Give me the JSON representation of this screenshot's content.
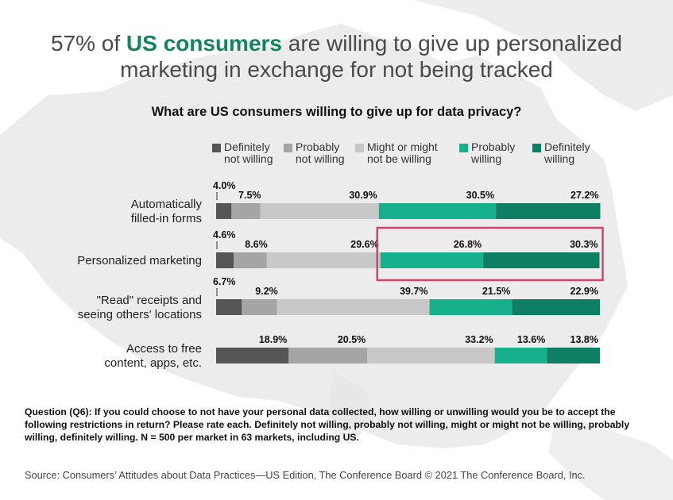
{
  "title": {
    "prefix": "57% of ",
    "highlight": "US consumers",
    "rest_line1": " are willing to give up personalized",
    "line2": "marketing in exchange for not being tracked"
  },
  "chart_data": {
    "type": "bar",
    "orientation": "horizontal",
    "stacked": true,
    "title": "What are US consumers willing to give up for data privacy?",
    "categories": [
      "Automatically filled-in forms",
      "Personalized marketing",
      "\"Read\" receipts and seeing others' locations",
      "Access to free content, apps, etc."
    ],
    "series": [
      {
        "name": "Definitely not willing",
        "color": "#555555",
        "values": [
          4.0,
          4.6,
          6.7,
          18.9
        ]
      },
      {
        "name": "Probably not willing",
        "color": "#a5a5a5",
        "values": [
          7.5,
          8.6,
          9.2,
          20.5
        ]
      },
      {
        "name": "Might or might not be willing",
        "color": "#c8c8c8",
        "values": [
          30.9,
          29.6,
          39.7,
          33.2
        ]
      },
      {
        "name": "Probably willing",
        "color": "#16b08c",
        "values": [
          30.5,
          26.8,
          21.5,
          13.6
        ]
      },
      {
        "name": "Definitely willing",
        "color": "#0e7f62",
        "values": [
          27.2,
          30.3,
          22.9,
          13.8
        ]
      }
    ],
    "value_labels": [
      [
        "4.0%",
        "7.5%",
        "30.9%",
        "30.5%",
        "27.2%"
      ],
      [
        "4.6%",
        "8.6%",
        "29.6%",
        "26.8%",
        "30.3%"
      ],
      [
        "6.7%",
        "9.2%",
        "39.7%",
        "21.5%",
        "22.9%"
      ],
      [
        "18.9%",
        "20.5%",
        "33.2%",
        "13.6%",
        "13.8%"
      ]
    ],
    "legend": {
      "position": "top",
      "labels": [
        "Definitely\nnot willing",
        "Probably\nnot willing",
        "Might or might\nnot be willing",
        "Probably\nwilling",
        "Definitely\nwilling"
      ]
    },
    "category_labels": [
      [
        "Automatically",
        "filled-in forms"
      ],
      [
        "Personalized marketing"
      ],
      [
        "\"Read\" receipts and",
        "seeing others' locations"
      ],
      [
        "Access to free",
        "content, apps, etc."
      ]
    ],
    "highlight": {
      "category_index": 1,
      "series": [
        "Probably willing",
        "Definitely willing"
      ],
      "color": "#d6426e"
    },
    "xlim": [
      0,
      100
    ]
  },
  "footnote": "Question (Q6): If you could choose to not have your personal data collected, how willing or unwilling would you be to accept the following restrictions in return? Please rate each. Definitely not willing, probably not willing, might or might not be willing, probably willing, definitely willing. N = 500 per market in 63 markets, including US.",
  "source": "Source: Consumers’ Attitudes about Data Practices—US Edition, The Conference Board  © 2021 The Conference Board, Inc."
}
